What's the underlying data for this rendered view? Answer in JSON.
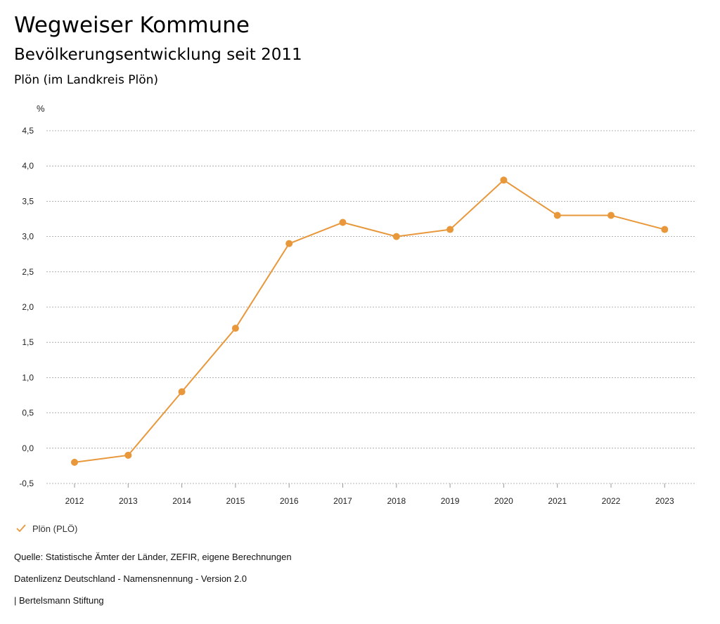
{
  "header": {
    "title": "Wegweiser Kommune",
    "subtitle": "Bevölkerungsentwicklung seit 2011",
    "region": "Plön (im Landkreis Plön)"
  },
  "chart_data": {
    "type": "line",
    "ylabel": "%",
    "xlabel": "",
    "categories": [
      "2012",
      "2013",
      "2014",
      "2015",
      "2016",
      "2017",
      "2018",
      "2019",
      "2020",
      "2021",
      "2022",
      "2023"
    ],
    "series": [
      {
        "name": "Plön (PLÖ)",
        "values": [
          -0.2,
          -0.1,
          0.8,
          1.7,
          2.9,
          3.2,
          3.0,
          3.1,
          3.8,
          3.3,
          3.3,
          3.1
        ]
      }
    ],
    "ylim": [
      -0.5,
      4.5
    ],
    "yticks": [
      -0.5,
      0.0,
      0.5,
      1.0,
      1.5,
      2.0,
      2.5,
      3.0,
      3.5,
      4.0,
      4.5
    ],
    "ytick_labels": [
      "-0,5",
      "0,0",
      "0,5",
      "1,0",
      "1,5",
      "2,0",
      "2,5",
      "3,0",
      "3,5",
      "4,0",
      "4,5"
    ],
    "grid": true,
    "legend_position": "bottom-left",
    "series_color": "#E8973A"
  },
  "legend": {
    "label": "Plön (PLÖ)"
  },
  "footer": {
    "source": "Quelle: Statistische Ämter der Länder, ZEFIR, eigene Berechnungen",
    "license": "Datenlizenz Deutschland - Namensnennung - Version 2.0",
    "org": "| Bertelsmann Stiftung"
  }
}
